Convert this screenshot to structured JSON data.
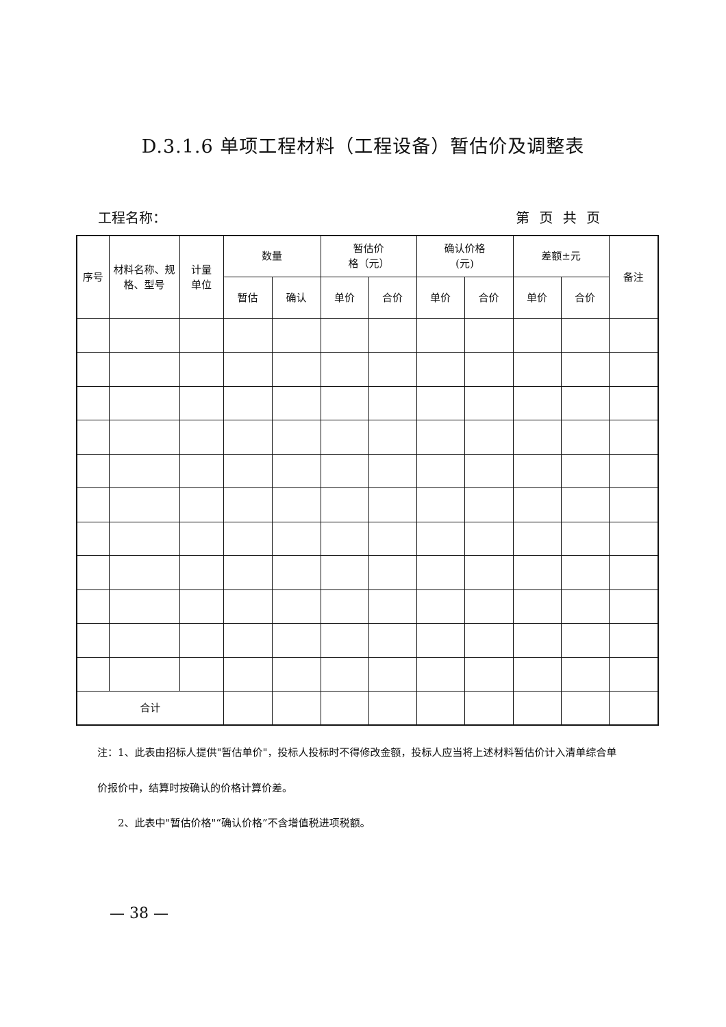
{
  "title": "D.3.1.6  单项工程材料（工程设备）暂估价及调整表",
  "project_name_label": "工程名称：",
  "page_label": "第 页 共 页",
  "table": {
    "headers": {
      "seq": "序号",
      "material": "材料名称、规格、型号",
      "unit": "计量单位",
      "quantity": "数量",
      "estimated_price": "暂估价格（元）",
      "confirmed_price": "确认价格(元)",
      "difference": "差额±元",
      "remark": "备注",
      "sub": [
        "暂估",
        "确认",
        "单价",
        "合价",
        "单价",
        "合价",
        "单价",
        "合价"
      ]
    },
    "total_label": "合计"
  },
  "notes": [
    "注：1、此表由招标人提供\"暂估单价\"，投标人投标时不得修改金额，投标人应当将上述材料暂估价计入清单综合单",
    "价报价中，结算时按确认的价格计算价差。",
    "2、此表中\"暂估价格\"“确认价格”不含增值税进项税额。"
  ],
  "page_number": "— 38 —"
}
